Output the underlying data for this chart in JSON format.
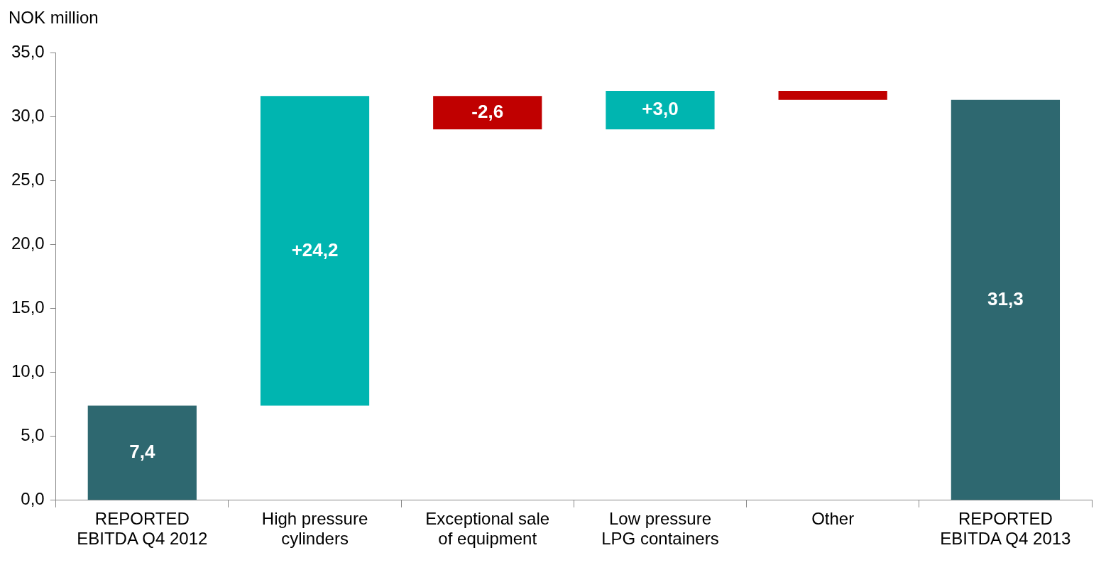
{
  "chart_data": {
    "type": "bar",
    "ylabel": "NOK million",
    "categories": [
      "REPORTED EBITDA Q4 2012",
      "High pressure cylinders",
      "Exceptional sale of equipment",
      "Low pressure LPG containers",
      "Other",
      "REPORTED EBITDA Q4 2013"
    ],
    "values": [
      7.4,
      24.2,
      -2.6,
      3.0,
      -0.7,
      31.3
    ],
    "base": [
      0,
      7.4,
      31.6,
      29.0,
      32.0,
      0
    ],
    "colors": [
      "#2e6870",
      "#00b5b0",
      "#c00000",
      "#00b5b0",
      "#c00000",
      "#2e6870"
    ],
    "value_labels": [
      "7,4",
      "+24,2",
      "-2,6",
      "+3,0",
      null,
      "31,3"
    ],
    "ylim": [
      0,
      35
    ],
    "yticks": [
      {
        "value": 0,
        "label": "0,0"
      },
      {
        "value": 5,
        "label": "5,0"
      },
      {
        "value": 10,
        "label": "10,0"
      },
      {
        "value": 15,
        "label": "15,0"
      },
      {
        "value": 20,
        "label": "20,0"
      },
      {
        "value": 25,
        "label": "25,0"
      },
      {
        "value": 30,
        "label": "30,0"
      },
      {
        "value": 35,
        "label": "35,0"
      }
    ],
    "grid": false,
    "legend": false
  }
}
